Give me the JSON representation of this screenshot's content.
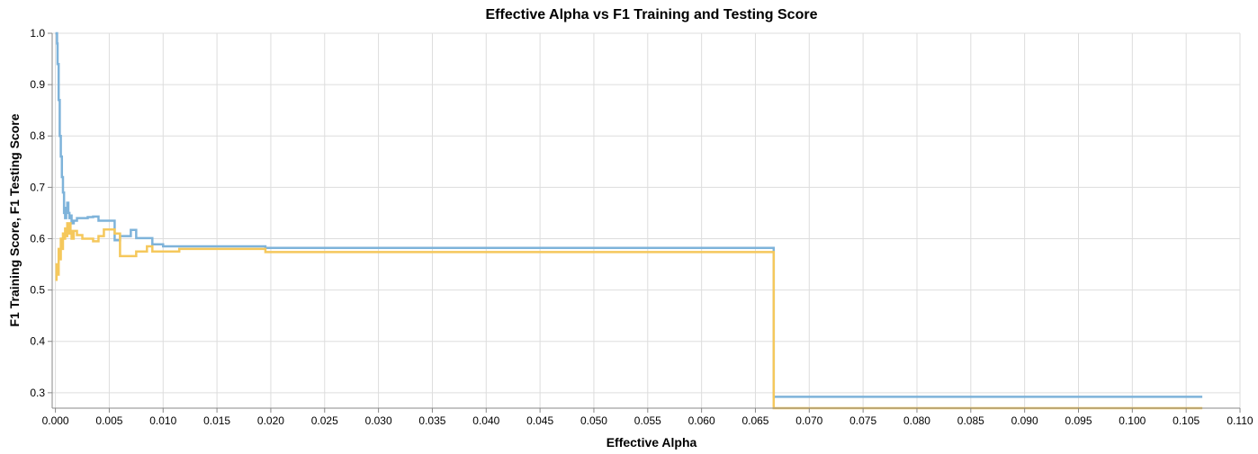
{
  "chart_data": {
    "type": "line",
    "title": "Effective Alpha vs F1 Training and Testing Score",
    "xlabel": "Effective Alpha",
    "ylabel": "F1 Training Score, F1 Testing Score",
    "xlim": [
      -0.0003,
      0.11
    ],
    "ylim": [
      0.27,
      1.0
    ],
    "grid": true,
    "legend": "none",
    "interpolation": "step-after",
    "xticks": [
      "0.000",
      "0.005",
      "0.010",
      "0.015",
      "0.020",
      "0.025",
      "0.030",
      "0.035",
      "0.040",
      "0.045",
      "0.050",
      "0.055",
      "0.060",
      "0.065",
      "0.070",
      "0.075",
      "0.080",
      "0.085",
      "0.090",
      "0.095",
      "0.100",
      "0.105",
      "0.110"
    ],
    "yticks": [
      "0.3",
      "0.4",
      "0.5",
      "0.6",
      "0.7",
      "0.8",
      "0.9",
      "1.0"
    ],
    "series": [
      {
        "color": "#7eb3da",
        "x": [
          0.0,
          0.00015,
          0.0002,
          0.0003,
          0.0004,
          0.0005,
          0.0006,
          0.0007,
          0.0008,
          0.0009,
          0.001,
          0.0011,
          0.0012,
          0.0013,
          0.0014,
          0.0015,
          0.0017,
          0.002,
          0.0025,
          0.003,
          0.0035,
          0.004,
          0.0045,
          0.0055,
          0.006,
          0.007,
          0.0075,
          0.0085,
          0.009,
          0.01,
          0.0115,
          0.0195,
          0.0667,
          0.1065
        ],
        "y": [
          1.0,
          0.98,
          0.94,
          0.87,
          0.8,
          0.76,
          0.72,
          0.69,
          0.65,
          0.64,
          0.66,
          0.67,
          0.65,
          0.64,
          0.645,
          0.63,
          0.635,
          0.64,
          0.64,
          0.642,
          0.643,
          0.635,
          0.635,
          0.597,
          0.605,
          0.617,
          0.601,
          0.601,
          0.589,
          0.585,
          0.585,
          0.582,
          0.292,
          0.292
        ]
      },
      {
        "color": "#f5c85c",
        "x": [
          0.0,
          0.0001,
          0.0002,
          0.0003,
          0.0004,
          0.0005,
          0.0006,
          0.0007,
          0.0008,
          0.0009,
          0.001,
          0.0011,
          0.0012,
          0.0013,
          0.0014,
          0.0015,
          0.0017,
          0.002,
          0.0025,
          0.003,
          0.0035,
          0.004,
          0.0045,
          0.0055,
          0.006,
          0.007,
          0.0075,
          0.0085,
          0.009,
          0.01,
          0.0115,
          0.0195,
          0.0667,
          0.1065
        ],
        "y": [
          0.52,
          0.55,
          0.53,
          0.58,
          0.56,
          0.6,
          0.58,
          0.61,
          0.6,
          0.62,
          0.605,
          0.63,
          0.61,
          0.63,
          0.615,
          0.6,
          0.615,
          0.607,
          0.6,
          0.6,
          0.595,
          0.605,
          0.618,
          0.61,
          0.566,
          0.566,
          0.575,
          0.585,
          0.575,
          0.575,
          0.58,
          0.574,
          0.27,
          0.27
        ]
      }
    ]
  }
}
